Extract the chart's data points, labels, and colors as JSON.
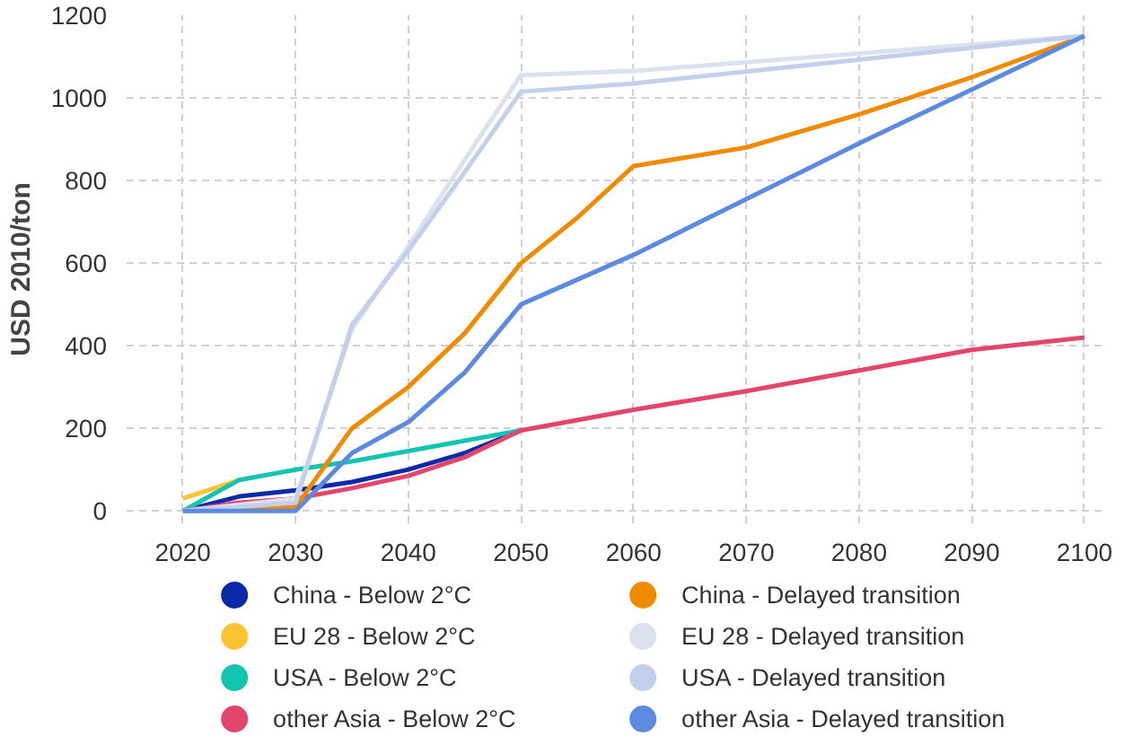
{
  "chart_data": {
    "type": "line",
    "ylabel": "USD 2010/ton",
    "xlim": [
      2015,
      2102
    ],
    "ylim": [
      -30,
      1200
    ],
    "xticks": [
      2020,
      2030,
      2040,
      2050,
      2060,
      2070,
      2080,
      2090,
      2100
    ],
    "yticks": [
      0,
      200,
      400,
      600,
      800,
      1000,
      1200
    ],
    "grid": true,
    "legend": "bottom",
    "line_style": "solid",
    "marker": "none",
    "series": [
      {
        "name": "China - Below 2°C",
        "color": "#0a2aa8",
        "x": [
          2020,
          2025,
          2030,
          2035,
          2040,
          2045,
          2050
        ],
        "values": [
          0,
          35,
          50,
          70,
          100,
          140,
          195
        ]
      },
      {
        "name": "EU 28 - Below 2°C",
        "color": "#fcc332",
        "x": [
          2020,
          2025
        ],
        "values": [
          30,
          75
        ]
      },
      {
        "name": "USA - Below 2°C",
        "color": "#13c4b0",
        "x": [
          2020,
          2025,
          2030,
          2035,
          2040,
          2045,
          2050
        ],
        "values": [
          0,
          75,
          100,
          120,
          145,
          170,
          195
        ]
      },
      {
        "name": "other Asia - Below 2°C",
        "color": "#e4456a",
        "x": [
          2020,
          2025,
          2030,
          2035,
          2040,
          2045,
          2050,
          2060,
          2070,
          2080,
          2090,
          2100
        ],
        "values": [
          0,
          20,
          30,
          55,
          85,
          130,
          195,
          245,
          290,
          340,
          390,
          420
        ]
      },
      {
        "name": "China - Delayed transition",
        "color": "#f08a00",
        "x": [
          2020,
          2030,
          2035,
          2040,
          2045,
          2050,
          2055,
          2060,
          2070,
          2080,
          2090,
          2100
        ],
        "values": [
          0,
          10,
          200,
          300,
          430,
          600,
          710,
          835,
          880,
          960,
          1050,
          1150
        ]
      },
      {
        "name": "EU 28 - Delayed transition",
        "color": "#dbe1ee",
        "x": [
          2020,
          2030,
          2035,
          2040,
          2045,
          2050,
          2060,
          2100
        ],
        "values": [
          0,
          30,
          440,
          640,
          850,
          1055,
          1065,
          1150
        ]
      },
      {
        "name": "USA - Delayed transition",
        "color": "#c3d0eb",
        "x": [
          2020,
          2030,
          2035,
          2040,
          2045,
          2050,
          2060,
          2100
        ],
        "values": [
          0,
          20,
          450,
          630,
          820,
          1015,
          1035,
          1150
        ]
      },
      {
        "name": "other Asia - Delayed transition",
        "color": "#5b8ae0",
        "x": [
          2020,
          2030,
          2035,
          2040,
          2045,
          2050,
          2060,
          2070,
          2080,
          2090,
          2100
        ],
        "values": [
          0,
          0,
          140,
          215,
          335,
          500,
          620,
          755,
          890,
          1020,
          1150
        ]
      }
    ]
  }
}
